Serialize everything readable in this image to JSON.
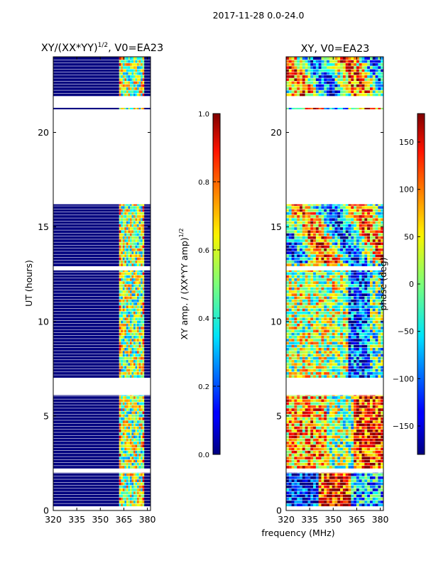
{
  "figure": {
    "suptitle": "2017-11-28 0.0-24.0",
    "xlabel": "frequency (MHz)"
  },
  "chart_data": [
    {
      "type": "heatmap",
      "title": "XY/(XX*YY)",
      "title_exponent": "1/2",
      "title_suffix": ", V0=EA23",
      "ylabel": "UT (hours)",
      "xlim": [
        320,
        382
      ],
      "ylim": [
        0,
        24
      ],
      "xticks": [
        320,
        335,
        350,
        365,
        380
      ],
      "yticks": [
        0,
        5,
        10,
        15,
        20
      ],
      "data_blocks_ut": [
        [
          0.2,
          2.0
        ],
        [
          2.2,
          6.1
        ],
        [
          7.0,
          7.8
        ],
        [
          7.8,
          12.7
        ],
        [
          12.9,
          16.2
        ],
        [
          21.2,
          21.3
        ],
        [
          21.9,
          24.0
        ]
      ],
      "active_band_mhz": [
        362,
        378
      ],
      "colorbar": {
        "label_main": "XY amp. / (XX*YY amp)",
        "label_exponent": "1/2",
        "range": [
          0.0,
          1.0
        ],
        "ticks": [
          "0.0",
          "0.2",
          "0.4",
          "0.6",
          "0.8",
          "1.0"
        ]
      }
    },
    {
      "type": "heatmap",
      "title": "XY, V0=EA23",
      "xlim": [
        320,
        382
      ],
      "ylim": [
        0,
        24
      ],
      "xticks": [
        320,
        335,
        350,
        365,
        380
      ],
      "yticks": [
        0,
        5,
        10,
        15,
        20
      ],
      "data_blocks_ut": [
        [
          0.2,
          2.0
        ],
        [
          2.2,
          6.1
        ],
        [
          7.0,
          7.8
        ],
        [
          7.8,
          12.7
        ],
        [
          12.9,
          16.2
        ],
        [
          21.2,
          21.3
        ],
        [
          21.9,
          24.0
        ]
      ],
      "colorbar": {
        "label": "phase (deg)",
        "range": [
          -180,
          180
        ],
        "ticks": [
          "150",
          "100",
          "50",
          "0",
          "−50",
          "−100",
          "−150"
        ],
        "tick_values": [
          150,
          100,
          50,
          0,
          -50,
          -100,
          -150
        ]
      }
    }
  ]
}
